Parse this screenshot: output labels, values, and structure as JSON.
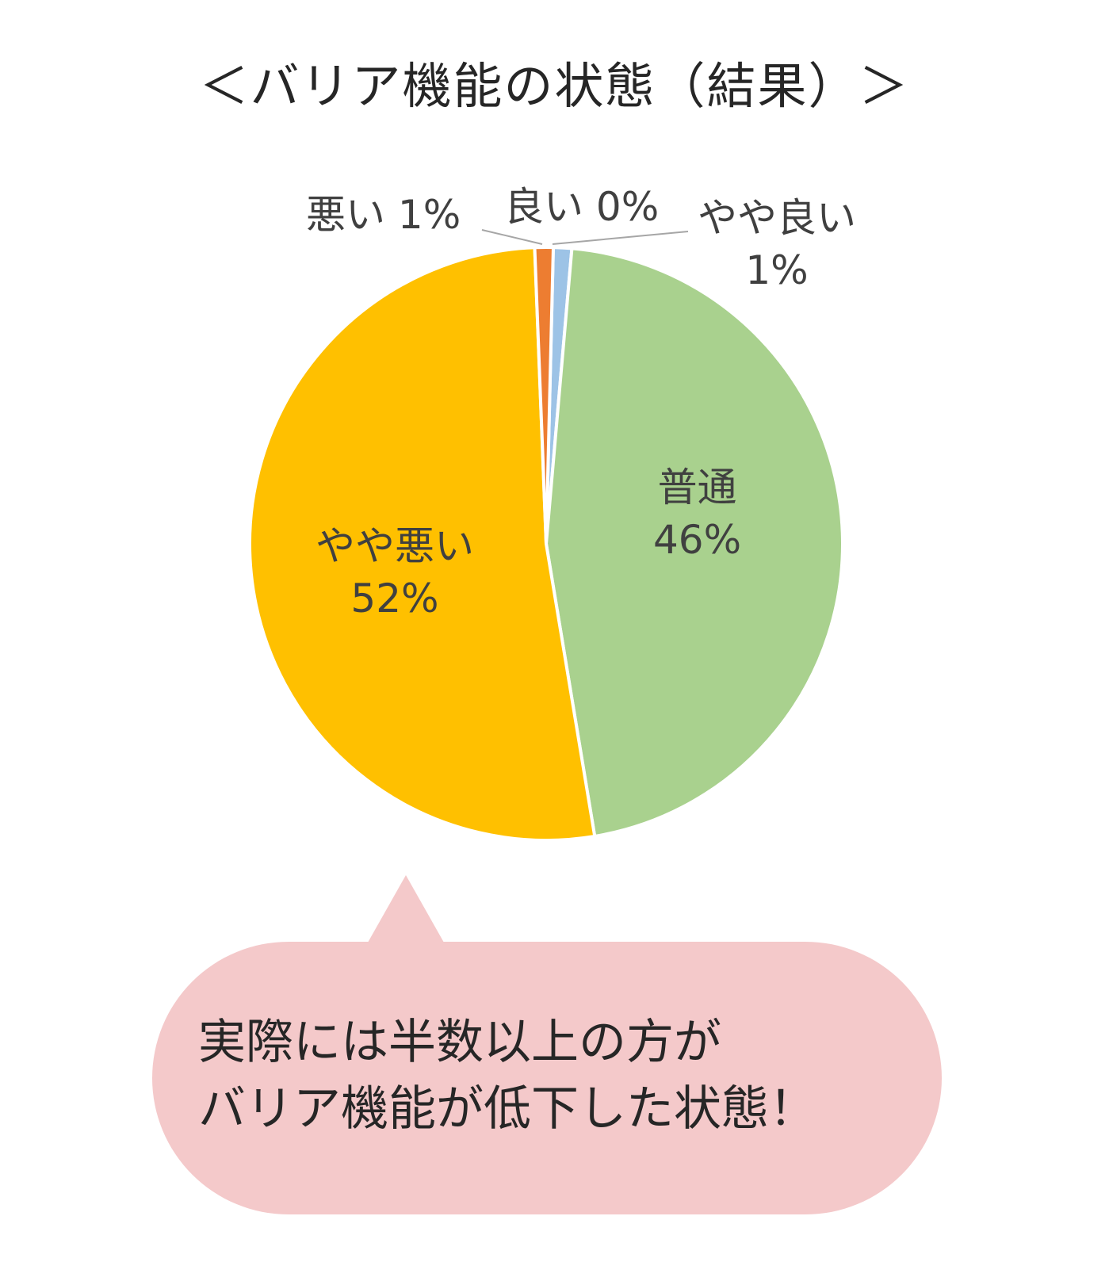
{
  "chart_data": {
    "type": "pie",
    "title": "＜バリア機能の状態（結果）＞",
    "slices": [
      {
        "name": "良い",
        "value": 0,
        "label": "0%",
        "color": "#4472c4"
      },
      {
        "name": "やや良い",
        "value": 1,
        "label": "1%",
        "color": "#9dc3e6"
      },
      {
        "name": "普通",
        "value": 46,
        "label": "46%",
        "color": "#a9d18e"
      },
      {
        "name": "やや悪い",
        "value": 52,
        "label": "52%",
        "color": "#ffc000"
      },
      {
        "name": "悪い",
        "value": 1,
        "label": "1%",
        "color": "#ed7d31"
      }
    ]
  },
  "callout": {
    "line1": "実際には半数以上の方が",
    "line2": "バリア機能が低下した状態！",
    "color": "#f4c9ca"
  }
}
